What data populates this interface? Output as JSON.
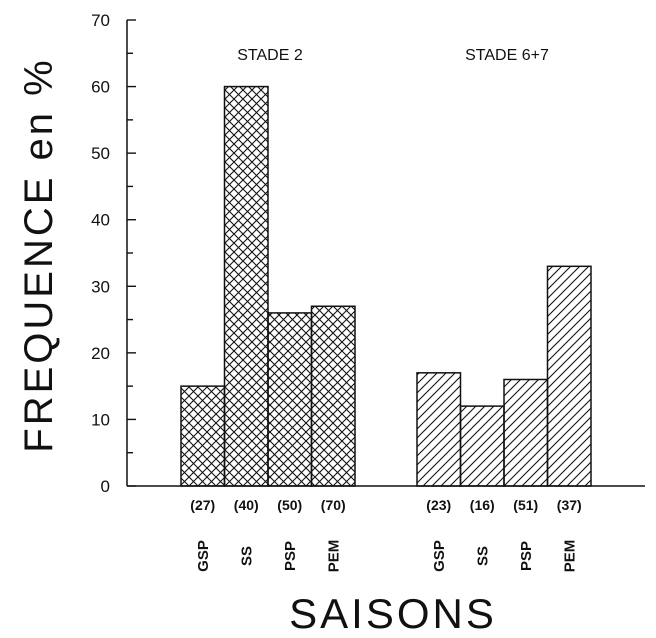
{
  "chart_data": {
    "type": "bar",
    "xlabel": "SAISONS",
    "ylabel": "FREQUENCE en %",
    "ylim": [
      0,
      70
    ],
    "yticks": [
      0,
      10,
      20,
      30,
      40,
      50,
      60,
      70
    ],
    "grid": false,
    "groups": [
      {
        "name": "STADE 2",
        "pattern": "crosshatch",
        "categories": [
          "GSP",
          "SS",
          "PSP",
          "PEM"
        ],
        "counts": [
          "(27)",
          "(40)",
          "(50)",
          "(70)"
        ],
        "values": [
          15,
          60,
          26,
          27
        ]
      },
      {
        "name": "STADE 6+7",
        "pattern": "diagonal",
        "categories": [
          "GSP",
          "SS",
          "PSP",
          "PEM"
        ],
        "counts": [
          "(23)",
          "(16)",
          "(51)",
          "(37)"
        ],
        "values": [
          17,
          12,
          16,
          33
        ]
      }
    ],
    "colors": {
      "ink": "#111111",
      "background": "#ffffff"
    }
  }
}
